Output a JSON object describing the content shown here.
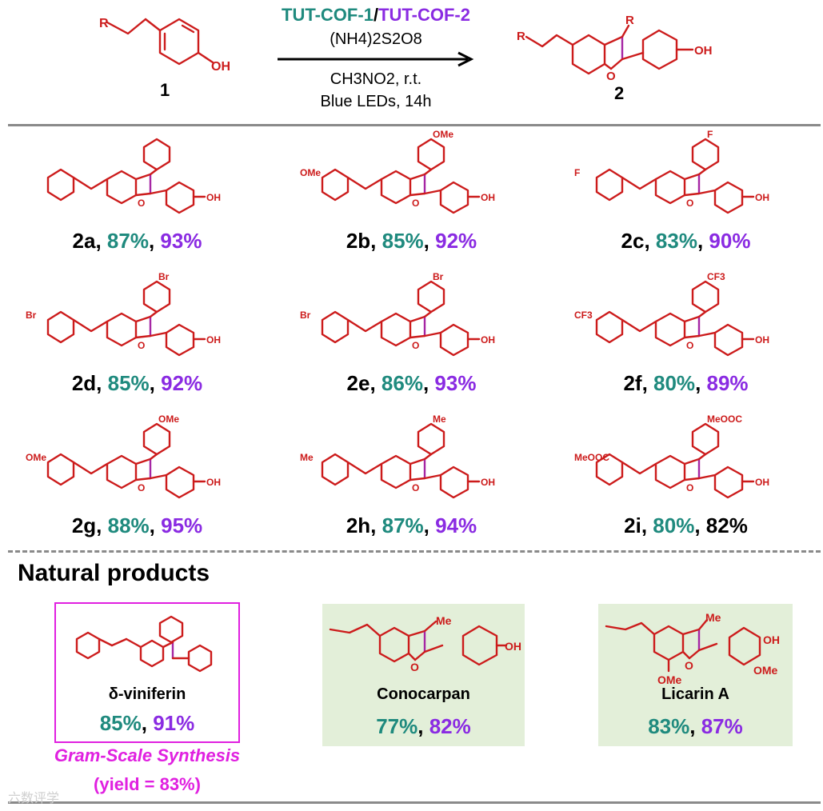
{
  "colors": {
    "teal": "#1f8a7e",
    "purple": "#8a2be2",
    "red": "#cc1b1b",
    "magenta": "#e020e0",
    "green_box": "#e3efd9"
  },
  "reaction": {
    "reactant_label": "1",
    "product_label": "2",
    "catalyst_a": "TUT-COF-1",
    "catalyst_sep": "/",
    "catalyst_b": "TUT-COF-2",
    "oxidant": "(NH4)2S2O8",
    "solvent": "CH3NO2, r.t.",
    "light": "Blue LEDs, 14h",
    "atoms": {
      "R": "R",
      "OH": "OH",
      "O": "O"
    }
  },
  "products": [
    {
      "id": "2a",
      "y1": "87%",
      "y2": "93%",
      "sub": ""
    },
    {
      "id": "2b",
      "y1": "85%",
      "y2": "92%",
      "sub": "OMe"
    },
    {
      "id": "2c",
      "y1": "83%",
      "y2": "90%",
      "sub": "F"
    },
    {
      "id": "2d",
      "y1": "85%",
      "y2": "92%",
      "sub": "Br"
    },
    {
      "id": "2e",
      "y1": "86%",
      "y2": "93%",
      "sub": "Br"
    },
    {
      "id": "2f",
      "y1": "80%",
      "y2": "89%",
      "sub": "CF3"
    },
    {
      "id": "2g",
      "y1": "88%",
      "y2": "95%",
      "sub": "OMe"
    },
    {
      "id": "2h",
      "y1": "87%",
      "y2": "94%",
      "sub": "Me"
    },
    {
      "id": "2i",
      "y1": "80%",
      "y2": "82%",
      "sub": "MeOOC"
    }
  ],
  "natural": {
    "heading": "Natural products",
    "items": [
      {
        "name": "δ-viniferin",
        "y1": "85%",
        "y2": "91%"
      },
      {
        "name": "Conocarpan",
        "y1": "77%",
        "y2": "82%"
      },
      {
        "name": "Licarin A",
        "y1": "83%",
        "y2": "87%"
      }
    ],
    "gram_scale": "Gram-Scale Synthesis",
    "gram_yield": "(yield = 83%)"
  },
  "watermark": "六数评学"
}
